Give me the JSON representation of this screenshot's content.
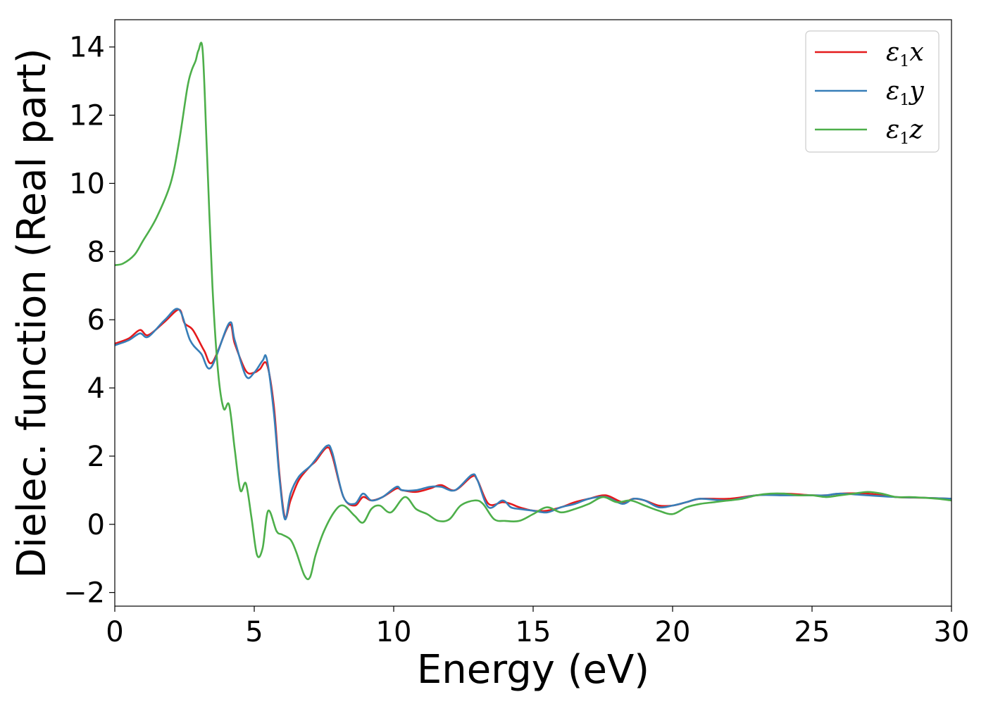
{
  "chart_data": {
    "type": "line",
    "title": "",
    "xlabel": "Energy (eV)",
    "ylabel": "Dielec. function (Real part)",
    "xlim": [
      0,
      30
    ],
    "ylim": [
      -2.4,
      14.8
    ],
    "xticks": [
      0,
      5,
      10,
      15,
      20,
      25,
      30
    ],
    "xtick_labels": [
      "0",
      "5",
      "10",
      "15",
      "20",
      "25",
      "30"
    ],
    "yticks": [
      -2,
      0,
      2,
      4,
      6,
      8,
      10,
      12,
      14
    ],
    "ytick_labels": [
      "−2",
      "0",
      "2",
      "4",
      "6",
      "8",
      "10",
      "12",
      "14"
    ],
    "grid": false,
    "legend_position": "top-right",
    "series": [
      {
        "name": "ε1x",
        "legend_main": "ε",
        "legend_sub": "1",
        "legend_var": "x",
        "color": "#e41a1c",
        "x": [
          0,
          0.5,
          0.9,
          1.2,
          1.8,
          2.3,
          2.5,
          2.8,
          3.2,
          3.5,
          4.1,
          4.3,
          4.7,
          5.0,
          5.2,
          5.45,
          5.7,
          5.9,
          6.1,
          6.3,
          6.6,
          7.0,
          7.2,
          7.6,
          7.8,
          8.2,
          8.6,
          8.9,
          9.2,
          9.6,
          10.1,
          10.3,
          10.8,
          11.3,
          11.7,
          12.2,
          12.8,
          13.0,
          13.4,
          13.9,
          14.2,
          14.5,
          15.0,
          15.5,
          16.0,
          16.5,
          17.0,
          17.6,
          18.2,
          18.6,
          19.0,
          19.5,
          20.0,
          20.5,
          21.0,
          22.0,
          23.0,
          24.0,
          25.0,
          25.5,
          26.0,
          27.0,
          28.0,
          29.0,
          30.0
        ],
        "y": [
          5.3,
          5.45,
          5.7,
          5.55,
          5.95,
          6.3,
          5.9,
          5.7,
          5.1,
          4.75,
          5.85,
          5.3,
          4.5,
          4.45,
          4.55,
          4.7,
          3.5,
          1.5,
          0.2,
          0.7,
          1.3,
          1.7,
          1.85,
          2.25,
          2.0,
          0.8,
          0.55,
          0.8,
          0.7,
          0.8,
          1.05,
          1.0,
          0.95,
          1.05,
          1.15,
          1.0,
          1.4,
          1.3,
          0.6,
          0.65,
          0.6,
          0.5,
          0.4,
          0.4,
          0.5,
          0.65,
          0.75,
          0.85,
          0.65,
          0.75,
          0.7,
          0.55,
          0.55,
          0.65,
          0.75,
          0.75,
          0.85,
          0.9,
          0.85,
          0.85,
          0.9,
          0.9,
          0.8,
          0.78,
          0.75
        ]
      },
      {
        "name": "ε1y",
        "legend_main": "ε",
        "legend_sub": "1",
        "legend_var": "y",
        "color": "#377eb8",
        "x": [
          0,
          0.5,
          0.9,
          1.2,
          1.8,
          2.3,
          2.7,
          3.1,
          3.45,
          4.1,
          4.3,
          4.7,
          5.0,
          5.3,
          5.45,
          5.7,
          5.9,
          6.1,
          6.3,
          6.6,
          7.0,
          7.2,
          7.6,
          7.8,
          8.2,
          8.6,
          8.9,
          9.2,
          9.6,
          10.1,
          10.3,
          10.8,
          11.3,
          11.7,
          12.2,
          12.8,
          13.0,
          13.4,
          13.9,
          14.2,
          14.5,
          15.0,
          15.5,
          16.0,
          16.5,
          17.0,
          17.6,
          18.2,
          18.6,
          19.0,
          19.5,
          20.0,
          20.5,
          21.0,
          22.0,
          23.0,
          24.0,
          25.0,
          25.5,
          26.0,
          27.0,
          28.0,
          29.0,
          30.0
        ],
        "y": [
          5.25,
          5.4,
          5.6,
          5.5,
          6.0,
          6.3,
          5.4,
          5.0,
          4.6,
          5.9,
          5.4,
          4.35,
          4.45,
          4.8,
          4.85,
          3.3,
          1.4,
          0.15,
          0.9,
          1.4,
          1.7,
          1.9,
          2.3,
          2.1,
          0.8,
          0.6,
          0.9,
          0.7,
          0.8,
          1.1,
          1.0,
          1.0,
          1.1,
          1.1,
          1.0,
          1.45,
          1.3,
          0.5,
          0.7,
          0.5,
          0.45,
          0.4,
          0.35,
          0.5,
          0.6,
          0.75,
          0.8,
          0.6,
          0.75,
          0.7,
          0.5,
          0.55,
          0.65,
          0.75,
          0.7,
          0.85,
          0.85,
          0.85,
          0.85,
          0.9,
          0.85,
          0.8,
          0.78,
          0.75
        ]
      },
      {
        "name": "ε1z",
        "legend_main": "ε",
        "legend_sub": "1",
        "legend_var": "z",
        "color": "#4daf4a",
        "x": [
          0,
          0.3,
          0.7,
          1.0,
          1.5,
          2.0,
          2.3,
          2.6,
          2.75,
          2.9,
          3.0,
          3.15,
          3.3,
          3.5,
          3.7,
          3.9,
          4.1,
          4.3,
          4.5,
          4.7,
          4.9,
          5.1,
          5.3,
          5.5,
          5.8,
          6.0,
          6.3,
          6.5,
          6.8,
          7.0,
          7.2,
          7.5,
          7.9,
          8.2,
          8.6,
          8.9,
          9.2,
          9.5,
          9.9,
          10.4,
          10.8,
          11.2,
          11.6,
          12.0,
          12.4,
          12.9,
          13.2,
          13.6,
          14.0,
          14.5,
          15.0,
          15.5,
          16.0,
          16.5,
          17.0,
          17.5,
          18.0,
          18.5,
          19.0,
          19.5,
          20.0,
          20.5,
          21.0,
          21.5,
          22.0,
          22.5,
          23.0,
          23.5,
          24.0,
          24.5,
          25.0,
          25.5,
          26.0,
          26.5,
          27.0,
          27.5,
          28.0,
          28.5,
          29.0,
          29.5,
          30.0
        ],
        "y": [
          7.6,
          7.65,
          7.9,
          8.3,
          9.0,
          10.0,
          11.2,
          12.8,
          13.3,
          13.6,
          13.9,
          13.9,
          11.0,
          7.0,
          4.5,
          3.4,
          3.5,
          2.2,
          1.0,
          1.2,
          0.2,
          -0.9,
          -0.7,
          0.4,
          -0.2,
          -0.3,
          -0.45,
          -0.8,
          -1.5,
          -1.55,
          -0.9,
          -0.2,
          0.4,
          0.55,
          0.25,
          0.05,
          0.45,
          0.55,
          0.35,
          0.8,
          0.45,
          0.3,
          0.1,
          0.15,
          0.55,
          0.7,
          0.6,
          0.15,
          0.1,
          0.1,
          0.3,
          0.5,
          0.35,
          0.45,
          0.6,
          0.8,
          0.65,
          0.7,
          0.55,
          0.4,
          0.3,
          0.5,
          0.6,
          0.65,
          0.7,
          0.75,
          0.85,
          0.9,
          0.9,
          0.85,
          0.85,
          0.8,
          0.85,
          0.9,
          0.95,
          0.9,
          0.8,
          0.8,
          0.78,
          0.75,
          0.7
        ]
      }
    ]
  }
}
